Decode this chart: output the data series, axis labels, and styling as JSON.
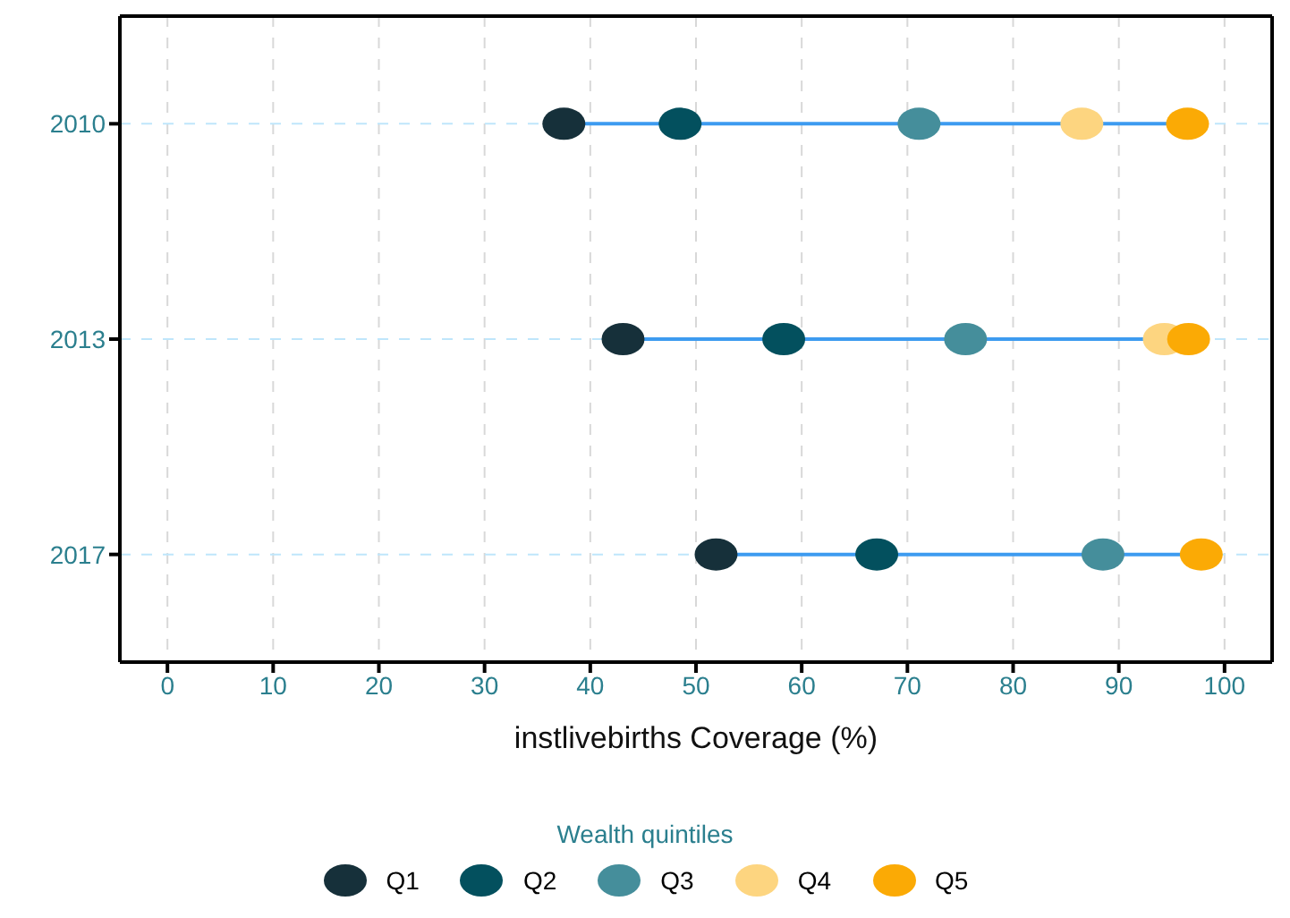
{
  "chart_data": {
    "type": "scatter",
    "xlabel": "instlivebirths Coverage (%)",
    "legend_title": "Wealth quintiles",
    "categories": [
      "2010",
      "2013",
      "2017"
    ],
    "series": [
      {
        "name": "Q1",
        "color": "#16303a",
        "values": [
          37.5,
          43.1,
          51.9
        ]
      },
      {
        "name": "Q2",
        "color": "#03505e",
        "values": [
          48.5,
          58.3,
          67.1
        ]
      },
      {
        "name": "Q3",
        "color": "#458e9b",
        "values": [
          71.1,
          75.5,
          88.5
        ]
      },
      {
        "name": "Q4",
        "color": "#fdd580",
        "values": [
          86.5,
          94.3,
          null
        ]
      },
      {
        "name": "Q5",
        "color": "#fbaa05",
        "values": [
          96.5,
          96.6,
          97.8
        ]
      }
    ],
    "orientation": "horizontal",
    "xlim": [
      -4.5,
      104.5
    ],
    "xticks": [
      0,
      10,
      20,
      30,
      40,
      50,
      60,
      70,
      80,
      90,
      100
    ],
    "grid": true,
    "legend": "bottom",
    "marker": "circle"
  }
}
